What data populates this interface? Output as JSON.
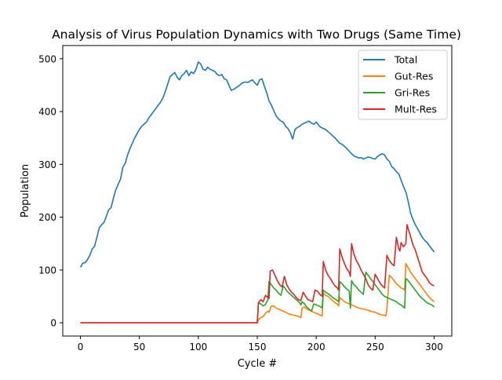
{
  "chart_data": {
    "type": "line",
    "title": "Analysis of Virus Population Dynamics with Two Drugs (Same Time)",
    "xlabel": "Cycle #",
    "ylabel": "Population",
    "xlim": [
      -15,
      315
    ],
    "ylim": [
      -25,
      525
    ],
    "xticks": [
      0,
      50,
      100,
      150,
      200,
      250,
      300
    ],
    "yticks": [
      0,
      100,
      200,
      300,
      400,
      500
    ],
    "grid": false,
    "legend_position": "top-right",
    "series": [
      {
        "name": "Total",
        "color": "#1f77b4",
        "x": [
          0,
          2,
          4,
          6,
          8,
          10,
          12,
          14,
          16,
          18,
          20,
          22,
          24,
          26,
          28,
          30,
          32,
          34,
          36,
          38,
          40,
          42,
          44,
          46,
          48,
          50,
          52,
          54,
          56,
          58,
          60,
          62,
          64,
          66,
          68,
          70,
          72,
          74,
          76,
          78,
          80,
          82,
          84,
          86,
          88,
          90,
          92,
          94,
          96,
          98,
          100,
          102,
          104,
          106,
          108,
          110,
          112,
          114,
          116,
          118,
          120,
          122,
          124,
          126,
          128,
          130,
          132,
          134,
          136,
          138,
          140,
          142,
          144,
          146,
          148,
          150,
          152,
          154,
          156,
          158,
          160,
          162,
          164,
          166,
          168,
          170,
          172,
          174,
          176,
          178,
          180,
          182,
          184,
          186,
          188,
          190,
          192,
          194,
          196,
          198,
          200,
          202,
          204,
          206,
          208,
          210,
          212,
          214,
          216,
          218,
          220,
          222,
          224,
          226,
          228,
          230,
          232,
          234,
          236,
          238,
          240,
          242,
          244,
          246,
          248,
          250,
          252,
          254,
          256,
          258,
          260,
          262,
          264,
          266,
          268,
          270,
          272,
          274,
          276,
          278,
          280,
          282,
          284,
          286,
          288,
          290,
          292,
          294,
          296,
          298,
          300
        ],
        "values": [
          105,
          113,
          114,
          120,
          128,
          140,
          145,
          162,
          180,
          186,
          190,
          202,
          214,
          218,
          236,
          252,
          262,
          272,
          295,
          302,
          318,
          330,
          340,
          350,
          358,
          366,
          372,
          376,
          380,
          388,
          394,
          400,
          406,
          412,
          418,
          426,
          438,
          452,
          466,
          470,
          474,
          465,
          460,
          468,
          472,
          478,
          468,
          475,
          472,
          480,
          494,
          490,
          480,
          478,
          484,
          480,
          478,
          476,
          470,
          468,
          470,
          462,
          460,
          450,
          440,
          442,
          445,
          448,
          452,
          455,
          456,
          455,
          458,
          460,
          454,
          450,
          460,
          462,
          448,
          436,
          420,
          412,
          402,
          392,
          386,
          382,
          380,
          372,
          368,
          360,
          348,
          366,
          370,
          372,
          376,
          378,
          380,
          382,
          378,
          376,
          380,
          374,
          370,
          368,
          366,
          362,
          358,
          354,
          350,
          345,
          340,
          338,
          334,
          330,
          325,
          320,
          316,
          314,
          312,
          313,
          310,
          312,
          314,
          313,
          311,
          310,
          315,
          318,
          320,
          318,
          310,
          306,
          296,
          292,
          286,
          282,
          270,
          258,
          248,
          230,
          208,
          196,
          186,
          178,
          170,
          162,
          156,
          152,
          146,
          140,
          134
        ]
      },
      {
        "name": "Gut-Res",
        "color": "#ff7f0e",
        "x": [
          0,
          150,
          151,
          153,
          155,
          157,
          159,
          160,
          162,
          164,
          166,
          168,
          170,
          172,
          174,
          176,
          178,
          180,
          182,
          184,
          186,
          187,
          188,
          190,
          192,
          194,
          196,
          198,
          200,
          202,
          204,
          205,
          206,
          208,
          210,
          212,
          214,
          216,
          218,
          219,
          220,
          222,
          224,
          226,
          228,
          230,
          232,
          234,
          236,
          238,
          240,
          242,
          244,
          246,
          248,
          250,
          252,
          254,
          256,
          258,
          259,
          260,
          262,
          264,
          266,
          268,
          270,
          272,
          274,
          275,
          276,
          278,
          280,
          282,
          284,
          286,
          288,
          290,
          292,
          294,
          296,
          298,
          300
        ],
        "values": [
          0,
          0,
          6,
          10,
          12,
          18,
          22,
          20,
          32,
          32,
          28,
          26,
          24,
          22,
          20,
          18,
          16,
          15,
          14,
          13,
          11,
          10,
          28,
          30,
          26,
          24,
          22,
          20,
          18,
          16,
          14,
          13,
          56,
          52,
          50,
          46,
          42,
          38,
          35,
          32,
          48,
          44,
          40,
          38,
          36,
          34,
          32,
          30,
          28,
          27,
          26,
          25,
          24,
          22,
          21,
          20,
          18,
          16,
          15,
          14,
          13,
          26,
          90,
          86,
          80,
          74,
          70,
          66,
          64,
          62,
          112,
          104,
          96,
          90,
          84,
          78,
          72,
          66,
          60,
          54,
          48,
          44,
          40
        ]
      },
      {
        "name": "Gri-Res",
        "color": "#2ca02c",
        "x": [
          0,
          150,
          151,
          153,
          155,
          157,
          159,
          160,
          162,
          164,
          166,
          168,
          170,
          172,
          174,
          176,
          178,
          180,
          182,
          184,
          186,
          187,
          188,
          190,
          192,
          194,
          196,
          198,
          200,
          202,
          204,
          205,
          206,
          208,
          210,
          212,
          214,
          216,
          218,
          219,
          220,
          222,
          224,
          226,
          228,
          229,
          230,
          232,
          234,
          236,
          238,
          240,
          242,
          244,
          246,
          248,
          250,
          252,
          254,
          256,
          258,
          260,
          262,
          264,
          266,
          268,
          270,
          272,
          274,
          275,
          276,
          278,
          280,
          282,
          284,
          286,
          288,
          290,
          292,
          294,
          296,
          298,
          300
        ],
        "values": [
          0,
          0,
          38,
          36,
          32,
          35,
          44,
          78,
          72,
          66,
          62,
          56,
          52,
          70,
          64,
          58,
          54,
          50,
          46,
          42,
          38,
          34,
          40,
          36,
          30,
          26,
          22,
          36,
          34,
          32,
          30,
          28,
          62,
          58,
          55,
          52,
          48,
          45,
          42,
          40,
          78,
          74,
          68,
          64,
          60,
          28,
          80,
          72,
          68,
          62,
          58,
          54,
          96,
          90,
          84,
          78,
          72,
          66,
          60,
          54,
          50,
          48,
          46,
          44,
          42,
          40,
          36,
          34,
          30,
          28,
          84,
          80,
          74,
          68,
          62,
          56,
          50,
          46,
          42,
          38,
          36,
          34,
          30
        ]
      },
      {
        "name": "Mult-Res",
        "color": "#d62728",
        "x": [
          0,
          150,
          151,
          153,
          155,
          157,
          159,
          160,
          161,
          163,
          165,
          167,
          169,
          171,
          173,
          175,
          177,
          179,
          181,
          183,
          185,
          187,
          189,
          191,
          193,
          195,
          197,
          199,
          201,
          203,
          205,
          206,
          208,
          210,
          212,
          214,
          216,
          218,
          219,
          220,
          222,
          224,
          226,
          228,
          229,
          230,
          232,
          234,
          236,
          238,
          240,
          242,
          244,
          246,
          248,
          250,
          252,
          254,
          256,
          258,
          260,
          262,
          264,
          266,
          268,
          270,
          271,
          272,
          274,
          276,
          277,
          278,
          280,
          282,
          284,
          286,
          288,
          290,
          292,
          294,
          296,
          298,
          300
        ],
        "values": [
          0,
          0,
          38,
          44,
          40,
          52,
          48,
          46,
          98,
          100,
          90,
          80,
          72,
          68,
          88,
          72,
          64,
          58,
          54,
          48,
          44,
          42,
          58,
          50,
          44,
          42,
          40,
          62,
          60,
          54,
          50,
          116,
          100,
          90,
          84,
          76,
          70,
          66,
          62,
          140,
          124,
          112,
          102,
          96,
          88,
          150,
          130,
          118,
          110,
          100,
          92,
          84,
          72,
          66,
          62,
          92,
          84,
          76,
          70,
          66,
          128,
          118,
          112,
          108,
          162,
          140,
          136,
          152,
          144,
          150,
          186,
          178,
          164,
          148,
          138,
          124,
          110,
          96,
          90,
          84,
          76,
          72,
          70
        ]
      }
    ]
  }
}
